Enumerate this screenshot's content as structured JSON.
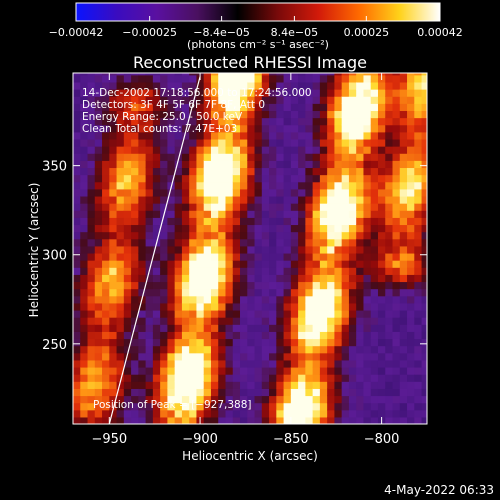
{
  "chart_data": {
    "type": "heatmap",
    "title": "Reconstructed RHESSI Image",
    "xlabel": "Heliocentric X (arcsec)",
    "ylabel": "Heliocentric Y (arcsec)",
    "xlim": [
      -970,
      -775
    ],
    "ylim": [
      205,
      402
    ],
    "x_ticks": [
      -950,
      -900,
      -850,
      -800
    ],
    "x_tick_labels": [
      "−950",
      "−900",
      "−850",
      "−800"
    ],
    "y_ticks": [
      250,
      300,
      350
    ],
    "y_tick_labels": [
      "250",
      "300",
      "350"
    ],
    "colorbar": {
      "min": -0.00042,
      "max": 0.00042,
      "ticks": [
        -0.00042,
        -0.00025,
        -8.4e-05,
        8.4e-05,
        0.00025,
        0.00042
      ],
      "tick_labels": [
        "−0.00042",
        "−0.00025",
        "−8.4e−05",
        "8.4e−05",
        "0.00025",
        "0.00042"
      ],
      "unit_label": "(photons cm⁻² s⁻¹ asec⁻²)",
      "colors": [
        "#0a14ff",
        "#3a0cc0",
        "#5a10a0",
        "#4a1060",
        "#000000",
        "#7a0a0a",
        "#d21a0a",
        "#ff6a00",
        "#ffd21a",
        "#ffffff"
      ]
    },
    "annotations": {
      "time_range": "14-Dec-2002 17:18:56.000 to 17:24:56.000",
      "detectors": "Detectors: 3F 4F 5F 6F 7F 8F, Att 0",
      "energy_range": "Energy Range: 25.0 - 50.0 keV",
      "clean": "Clean    Total counts: 7.47E+03",
      "peak": "Position of Peak = [−927,388]"
    },
    "bright_ridges": [
      {
        "x_start": -960,
        "y_start": 210,
        "x_end": -935,
        "y_end": 380,
        "peak": 0.6
      },
      {
        "x_start": -910,
        "y_start": 210,
        "x_end": -880,
        "y_end": 400,
        "peak": 1.0
      },
      {
        "x_start": -845,
        "y_start": 210,
        "x_end": -810,
        "y_end": 400,
        "peak": 0.95
      },
      {
        "x_start": -790,
        "y_start": 300,
        "x_end": -775,
        "y_end": 400,
        "peak": 0.7
      }
    ],
    "limb_curve": [
      [
        -950,
        205
      ],
      [
        -935,
        265
      ],
      [
        -918,
        330
      ],
      [
        -900,
        400
      ]
    ],
    "footer_date": "4-May-2022 06:33"
  }
}
